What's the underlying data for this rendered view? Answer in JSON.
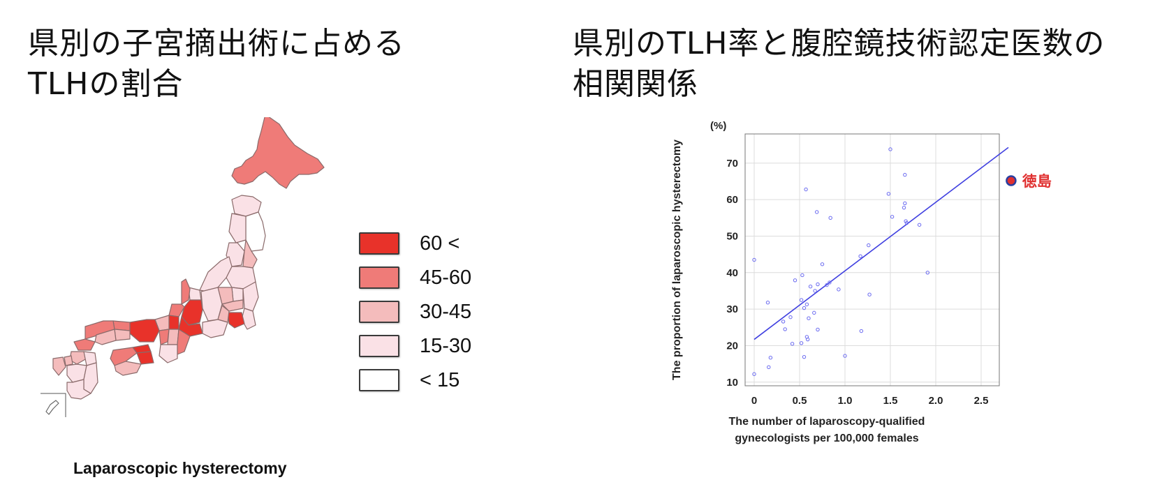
{
  "left": {
    "title": "県別の子宮摘出術に占める\nTLHの割合",
    "caption": "Laparoscopic hysterectomy",
    "legend": [
      {
        "label": "60 <",
        "color": "#e8322a"
      },
      {
        "label": "45-60",
        "color": "#ef7b78"
      },
      {
        "label": "30-45",
        "color": "#f4bcbc"
      },
      {
        "label": "15-30",
        "color": "#fae1e6"
      },
      {
        "label": "< 15",
        "color": "#ffffff"
      }
    ]
  },
  "right": {
    "title": "県別のTLH率と腹腔鏡技術認定医数の\n相関関係"
  },
  "colors": {
    "points": "#6a6af0",
    "trend_line": "#3f3fe0",
    "highlight_fill": "#e03030",
    "highlight_edge": "#2a3fa0",
    "highlight_label": "#e03030"
  },
  "chart_data": {
    "type": "scatter",
    "xlabel": "The number of laparoscopy-qualified\ngynecologists per 100,000 females",
    "ylabel": "The proportion of laparoscopic hysterectomy",
    "yunit": "(%)",
    "xlim": [
      -0.1,
      2.7
    ],
    "ylim": [
      9,
      78
    ],
    "xticks": [
      0,
      0.5,
      1.0,
      1.5,
      2.0,
      2.5
    ],
    "yticks": [
      10,
      20,
      30,
      40,
      50,
      60,
      70
    ],
    "grid": true,
    "points": [
      {
        "x": 0.0,
        "y": 43.5
      },
      {
        "x": 0.0,
        "y": 12.2
      },
      {
        "x": 0.15,
        "y": 31.8
      },
      {
        "x": 0.18,
        "y": 16.7
      },
      {
        "x": 0.16,
        "y": 14.1
      },
      {
        "x": 0.32,
        "y": 26.6
      },
      {
        "x": 0.34,
        "y": 24.5
      },
      {
        "x": 0.4,
        "y": 27.8
      },
      {
        "x": 0.42,
        "y": 20.5
      },
      {
        "x": 0.45,
        "y": 37.9
      },
      {
        "x": 0.52,
        "y": 20.7
      },
      {
        "x": 0.52,
        "y": 32.5
      },
      {
        "x": 0.55,
        "y": 30.3
      },
      {
        "x": 0.53,
        "y": 39.3
      },
      {
        "x": 0.55,
        "y": 16.9
      },
      {
        "x": 0.57,
        "y": 62.8
      },
      {
        "x": 0.58,
        "y": 22.4
      },
      {
        "x": 0.58,
        "y": 31.3
      },
      {
        "x": 0.59,
        "y": 21.7
      },
      {
        "x": 0.6,
        "y": 27.5
      },
      {
        "x": 0.62,
        "y": 36.2
      },
      {
        "x": 0.66,
        "y": 29.0
      },
      {
        "x": 0.67,
        "y": 35.0
      },
      {
        "x": 0.69,
        "y": 56.6
      },
      {
        "x": 0.7,
        "y": 36.8
      },
      {
        "x": 0.7,
        "y": 24.4
      },
      {
        "x": 0.75,
        "y": 42.3
      },
      {
        "x": 0.8,
        "y": 36.6
      },
      {
        "x": 0.83,
        "y": 37.3
      },
      {
        "x": 0.84,
        "y": 55.0
      },
      {
        "x": 0.93,
        "y": 35.4
      },
      {
        "x": 1.0,
        "y": 17.2
      },
      {
        "x": 1.17,
        "y": 44.5
      },
      {
        "x": 1.18,
        "y": 24.0
      },
      {
        "x": 1.26,
        "y": 47.5
      },
      {
        "x": 1.27,
        "y": 34.0
      },
      {
        "x": 1.48,
        "y": 61.6
      },
      {
        "x": 1.5,
        "y": 73.8
      },
      {
        "x": 1.52,
        "y": 55.3
      },
      {
        "x": 1.65,
        "y": 57.8
      },
      {
        "x": 1.66,
        "y": 59.0
      },
      {
        "x": 1.66,
        "y": 66.8
      },
      {
        "x": 1.67,
        "y": 54.1
      },
      {
        "x": 1.68,
        "y": 53.6
      },
      {
        "x": 1.82,
        "y": 53.1
      },
      {
        "x": 1.91,
        "y": 40.0
      }
    ],
    "highlight": {
      "label": "徳島",
      "x": 2.83,
      "y": 65.2
    },
    "trend_line": {
      "x": [
        0.0,
        2.8
      ],
      "y": [
        21.7,
        74.3
      ]
    }
  }
}
